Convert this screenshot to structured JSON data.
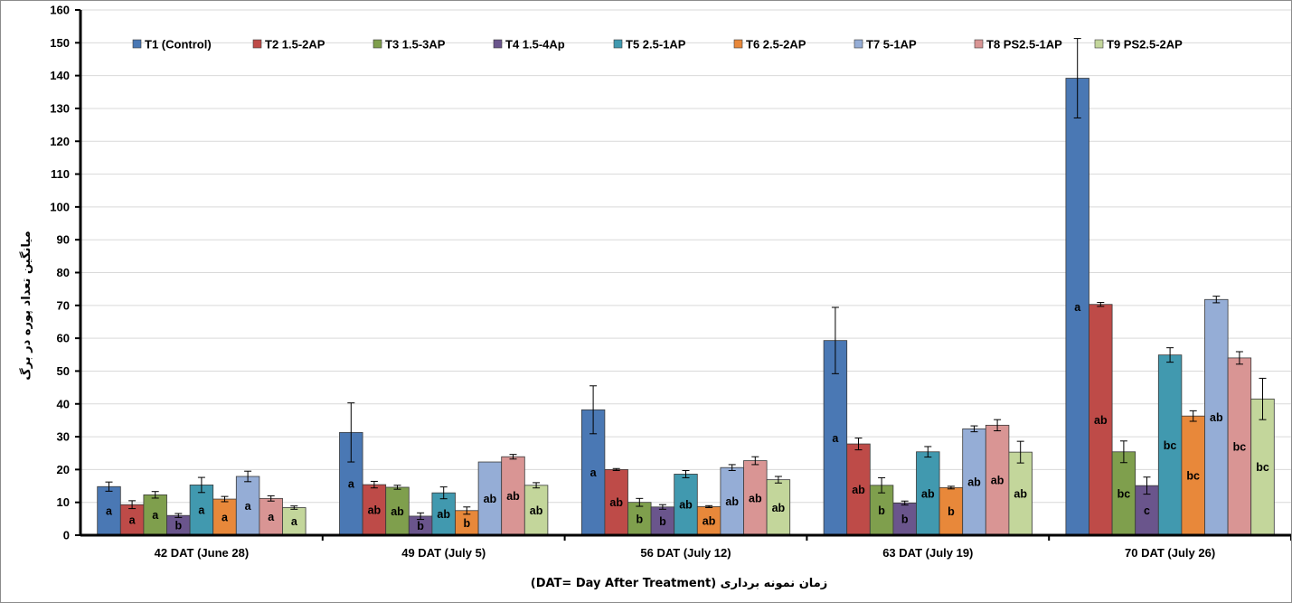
{
  "chart_data": {
    "type": "bar",
    "xlabel": "زمان نمونه برداری (DAT= Day After Treatment)",
    "ylabel": "میانگین تعداد پوره در برگ",
    "ylim": [
      0,
      160
    ],
    "y_ticks": [
      0,
      10,
      20,
      30,
      40,
      50,
      60,
      70,
      80,
      90,
      100,
      110,
      120,
      130,
      140,
      150,
      160
    ],
    "grid": true,
    "legend_position": "top",
    "categories": [
      "42 DAT (June 28)",
      "49 DAT (July 5)",
      "56 DAT (July 12)",
      "63 DAT (July 19)",
      "70 DAT (July 26)"
    ],
    "series": [
      {
        "name": "T1 (Control)",
        "color": "#4a78b4",
        "values": [
          14.8,
          31.3,
          38.2,
          59.3,
          139.2
        ],
        "errors": [
          1.4,
          9.0,
          7.3,
          10.1,
          12.1
        ],
        "labels": [
          "a",
          "a",
          "a",
          "a",
          "a"
        ]
      },
      {
        "name": "T2 1.5-2AP",
        "color": "#be4b48",
        "values": [
          9.3,
          15.4,
          20.0,
          27.8,
          70.3
        ],
        "errors": [
          1.2,
          1.0,
          0.3,
          1.8,
          0.6
        ],
        "labels": [
          "a",
          "ab",
          "ab",
          "ab",
          "ab"
        ]
      },
      {
        "name": "T3 1.5-3AP",
        "color": "#7f9f4d",
        "values": [
          12.3,
          14.6,
          10.0,
          15.2,
          25.4
        ],
        "errors": [
          1.0,
          0.6,
          1.2,
          2.3,
          3.3
        ],
        "labels": [
          "a",
          "ab",
          "b",
          "b",
          "bc"
        ]
      },
      {
        "name": "T4 1.5-4Ap",
        "color": "#6a558c",
        "values": [
          6.0,
          5.8,
          8.6,
          9.8,
          15.1
        ],
        "errors": [
          0.6,
          1.0,
          0.7,
          0.6,
          2.6
        ],
        "labels": [
          "b",
          "b",
          "b",
          "b",
          "c"
        ]
      },
      {
        "name": "T5 2.5-1AP",
        "color": "#4199af",
        "values": [
          15.3,
          12.9,
          18.6,
          25.4,
          54.9
        ],
        "errors": [
          2.3,
          1.8,
          1.1,
          1.6,
          2.2
        ],
        "labels": [
          "a",
          "ab",
          "ab",
          "ab",
          "bc"
        ]
      },
      {
        "name": "T6 2.5-2AP",
        "color": "#e8883a",
        "values": [
          11.0,
          7.5,
          8.7,
          14.5,
          36.3
        ],
        "errors": [
          0.8,
          1.1,
          0.3,
          0.4,
          1.6
        ],
        "labels": [
          "a",
          "b",
          "ab",
          "b",
          "bc"
        ]
      },
      {
        "name": "T7 5-1AP",
        "color": "#95add6",
        "values": [
          17.9,
          22.3,
          20.6,
          32.4,
          71.8
        ],
        "errors": [
          1.6,
          0.0,
          0.9,
          0.9,
          1.0
        ],
        "labels": [
          "a",
          "ab",
          "ab",
          "ab",
          "ab"
        ]
      },
      {
        "name": "T8 PS2.5-1AP",
        "color": "#d99594",
        "values": [
          11.2,
          23.9,
          22.7,
          33.5,
          54.0
        ],
        "errors": [
          0.8,
          0.7,
          1.2,
          1.7,
          1.9
        ],
        "labels": [
          "a",
          "ab",
          "ab",
          "ab",
          "bc"
        ]
      },
      {
        "name": "T9 PS2.5-2AP",
        "color": "#c3d69b",
        "values": [
          8.4,
          15.2,
          16.9,
          25.3,
          41.5
        ],
        "errors": [
          0.5,
          0.8,
          1.0,
          3.3,
          6.3
        ],
        "labels": [
          "a",
          "ab",
          "ab",
          "ab",
          "bc"
        ]
      }
    ]
  }
}
